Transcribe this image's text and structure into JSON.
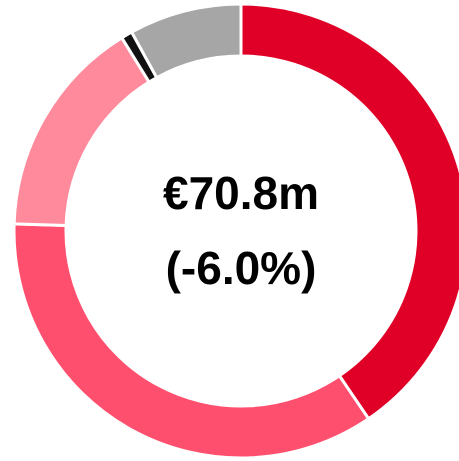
{
  "chart_data": {
    "type": "donut",
    "values": [
      40.5,
      35,
      15.7,
      0.8,
      8
    ],
    "colors": [
      "#e00027",
      "#ff4f6e",
      "#ff8a9c",
      "#111111",
      "#a6a6a6"
    ],
    "center_text": [
      "€70.8m",
      "(-6.0%)"
    ]
  }
}
